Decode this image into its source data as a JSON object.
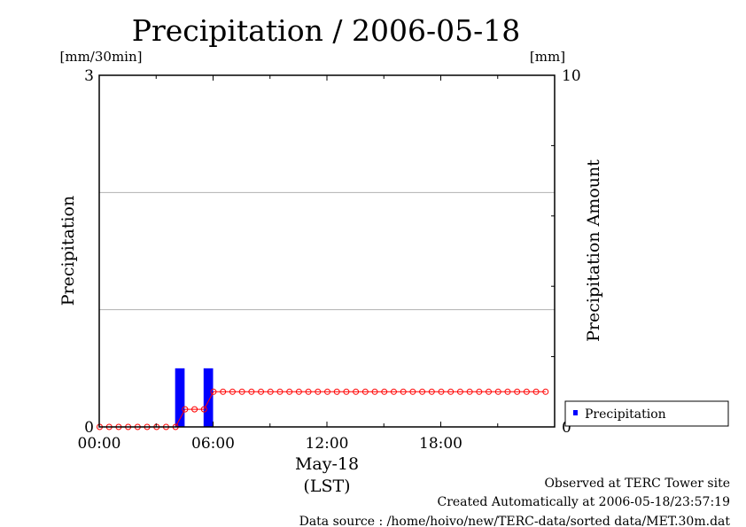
{
  "page": {
    "title": "Precipitation / 2006-05-18",
    "left_unit": "[mm/30min]",
    "right_unit": "[mm]",
    "footer": {
      "line1": "Observed at TERC Tower site",
      "line2": "Created Automatically at 2006-05-18/23:57:19",
      "line3": "Data source : /home/hoivo/new/TERC-data/sorted  data/MET.30m.dat"
    }
  },
  "chart_data": {
    "type": "bar",
    "title": "Precipitation / 2006-05-18",
    "xlabel_date": "May-18",
    "xlabel_tz": "(LST)",
    "ylabel_left": "Precipitation",
    "ylabel_right": "Precipitation Amount",
    "x_tick_labels": [
      "00:00",
      "06:00",
      "12:00",
      "18:00"
    ],
    "x_tick_hours": [
      0,
      6,
      12,
      18
    ],
    "x_range_hours": [
      0,
      24
    ],
    "y_left_range": [
      0,
      3
    ],
    "y_left_tick_labels": [
      "0",
      "3"
    ],
    "y_right_range": [
      0,
      10
    ],
    "y_right_tick_labels": [
      "0",
      "10"
    ],
    "grid": "horizontal",
    "legend": {
      "position": "bottom-right",
      "entries": [
        "Precipitation"
      ]
    },
    "colors": {
      "bar": "#0000ff",
      "cumulative": "#ff0000",
      "grid": "#b0b0b0"
    },
    "series": [
      {
        "name": "Precipitation",
        "kind": "bar",
        "axis": "left",
        "points": [
          {
            "time": "04:00",
            "value": 0.5
          },
          {
            "time": "05:30",
            "value": 0.5
          }
        ]
      },
      {
        "kind": "line",
        "axis": "right",
        "times": [
          "00:00",
          "00:30",
          "01:00",
          "01:30",
          "02:00",
          "02:30",
          "03:00",
          "03:30",
          "04:00",
          "04:30",
          "05:00",
          "05:30",
          "06:00",
          "06:30",
          "07:00",
          "07:30",
          "08:00",
          "08:30",
          "09:00",
          "09:30",
          "10:00",
          "10:30",
          "11:00",
          "11:30",
          "12:00",
          "12:30",
          "13:00",
          "13:30",
          "14:00",
          "14:30",
          "15:00",
          "15:30",
          "16:00",
          "16:30",
          "17:00",
          "17:30",
          "18:00",
          "18:30",
          "19:00",
          "19:30",
          "20:00",
          "20:30",
          "21:00",
          "21:30",
          "22:00",
          "22:30",
          "23:00",
          "23:30"
        ],
        "values": [
          0,
          0,
          0,
          0,
          0,
          0,
          0,
          0,
          0,
          0.5,
          0.5,
          0.5,
          1.0,
          1.0,
          1.0,
          1.0,
          1.0,
          1.0,
          1.0,
          1.0,
          1.0,
          1.0,
          1.0,
          1.0,
          1.0,
          1.0,
          1.0,
          1.0,
          1.0,
          1.0,
          1.0,
          1.0,
          1.0,
          1.0,
          1.0,
          1.0,
          1.0,
          1.0,
          1.0,
          1.0,
          1.0,
          1.0,
          1.0,
          1.0,
          1.0,
          1.0,
          1.0,
          1.0
        ]
      }
    ]
  }
}
